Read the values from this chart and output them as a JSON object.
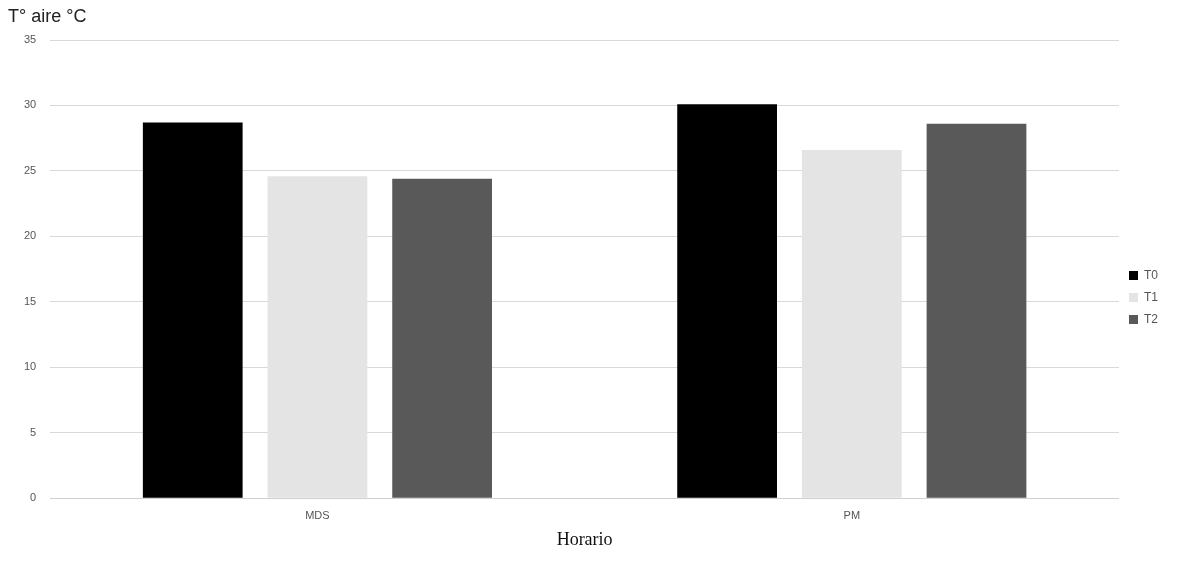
{
  "chart_data": {
    "type": "bar",
    "ylabel": "T° aire °C",
    "xlabel": "Horario",
    "categories": [
      "MDS",
      "PM"
    ],
    "series": [
      {
        "name": "T0",
        "color": "#000000",
        "values": [
          28.7,
          30.1
        ]
      },
      {
        "name": "T1",
        "color": "#e4e4e4",
        "values": [
          24.6,
          26.6
        ]
      },
      {
        "name": "T2",
        "color": "#595959",
        "values": [
          24.4,
          28.6
        ]
      }
    ],
    "ylim": [
      0,
      35
    ],
    "yticks": [
      0,
      5,
      10,
      15,
      20,
      25,
      30,
      35
    ],
    "grid": "y",
    "legend": "right"
  }
}
